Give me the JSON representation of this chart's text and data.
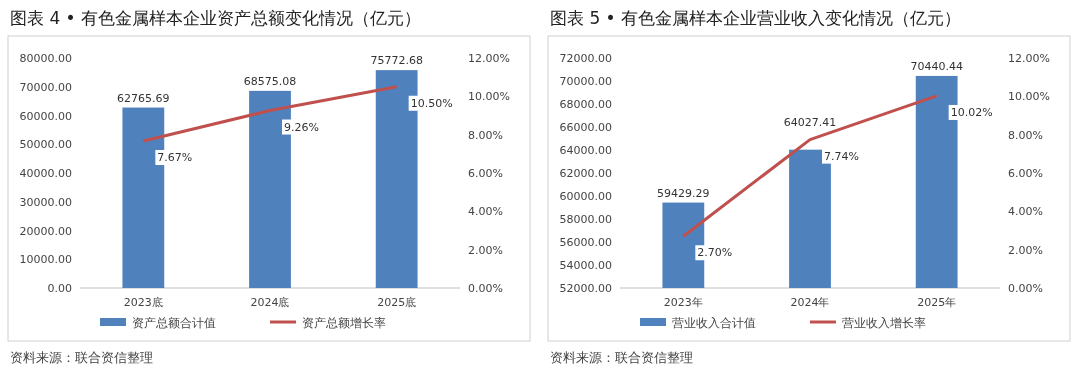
{
  "chart_data": [
    {
      "type": "bar",
      "title": "图表 4 • 有色金属样本企业资产总额变化情况（亿元）",
      "categories": [
        "2023底",
        "2024底",
        "2025底"
      ],
      "series": [
        {
          "name": "资产总额合计值",
          "color": "#4f81bd",
          "values": [
            62765.69,
            68575.08,
            75772.68
          ],
          "value_labels": [
            "62765.69",
            "68575.08",
            "75772.68"
          ]
        },
        {
          "name": "资产总额增长率",
          "type": "line",
          "axis": "y2",
          "color": "#c0504d",
          "values": [
            7.67,
            9.26,
            10.5
          ],
          "value_labels": [
            "7.67%",
            "9.26%",
            "10.50%"
          ]
        }
      ],
      "ylim": [
        0,
        80000
      ],
      "yticks": [
        {
          "value": 0,
          "label": "0.00"
        },
        {
          "value": 10000,
          "label": "10000.00"
        },
        {
          "value": 20000,
          "label": "20000.00"
        },
        {
          "value": 30000,
          "label": "30000.00"
        },
        {
          "value": 40000,
          "label": "40000.00"
        },
        {
          "value": 50000,
          "label": "50000.00"
        },
        {
          "value": 60000,
          "label": "60000.00"
        },
        {
          "value": 70000,
          "label": "70000.00"
        },
        {
          "value": 80000,
          "label": "80000.00"
        }
      ],
      "y2lim": [
        0,
        12
      ],
      "y2ticks": [
        {
          "value": 0,
          "label": "0.00%"
        },
        {
          "value": 2,
          "label": "2.00%"
        },
        {
          "value": 4,
          "label": "4.00%"
        },
        {
          "value": 6,
          "label": "6.00%"
        },
        {
          "value": 8,
          "label": "8.00%"
        },
        {
          "value": 10,
          "label": "10.00%"
        },
        {
          "value": 12,
          "label": "12.00%"
        }
      ],
      "legend": "bottom",
      "annotations": [
        "资料来源：联合资信整理"
      ]
    },
    {
      "type": "bar",
      "title": "图表 5 • 有色金属样本企业营业收入变化情况（亿元）",
      "categories": [
        "2023年",
        "2024年",
        "2025年"
      ],
      "series": [
        {
          "name": "营业收入合计值",
          "color": "#4f81bd",
          "values": [
            59429.29,
            64027.41,
            70440.44
          ],
          "value_labels": [
            "59429.29",
            "64027.41",
            "70440.44"
          ]
        },
        {
          "name": "营业收入增长率",
          "type": "line",
          "axis": "y2",
          "color": "#c0504d",
          "values": [
            2.7,
            7.74,
            10.02
          ],
          "value_labels": [
            "2.70%",
            "7.74%",
            "10.02%"
          ]
        }
      ],
      "ylim": [
        52000,
        72000
      ],
      "yticks": [
        {
          "value": 52000,
          "label": "52000.00"
        },
        {
          "value": 54000,
          "label": "54000.00"
        },
        {
          "value": 56000,
          "label": "56000.00"
        },
        {
          "value": 58000,
          "label": "58000.00"
        },
        {
          "value": 60000,
          "label": "60000.00"
        },
        {
          "value": 62000,
          "label": "62000.00"
        },
        {
          "value": 64000,
          "label": "64000.00"
        },
        {
          "value": 66000,
          "label": "66000.00"
        },
        {
          "value": 68000,
          "label": "68000.00"
        },
        {
          "value": 70000,
          "label": "70000.00"
        },
        {
          "value": 72000,
          "label": "72000.00"
        }
      ],
      "y2lim": [
        0,
        12
      ],
      "y2ticks": [
        {
          "value": 0,
          "label": "0.00%"
        },
        {
          "value": 2,
          "label": "2.00%"
        },
        {
          "value": 4,
          "label": "4.00%"
        },
        {
          "value": 6,
          "label": "6.00%"
        },
        {
          "value": 8,
          "label": "8.00%"
        },
        {
          "value": 10,
          "label": "10.00%"
        },
        {
          "value": 12,
          "label": "12.00%"
        }
      ],
      "legend": "bottom",
      "annotations": [
        "资料来源：联合资信整理"
      ]
    }
  ]
}
